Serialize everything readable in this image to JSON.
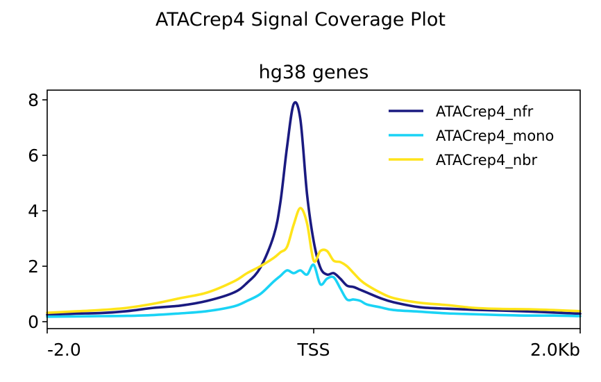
{
  "figure": {
    "suptitle": "ATACrep4 Signal Coverage Plot"
  },
  "chart_data": {
    "type": "line",
    "title": "hg38 genes",
    "xlabel": "",
    "ylabel": "",
    "x_tick_labels": [
      "-2.0",
      "TSS",
      "2.0Kb"
    ],
    "x_tick_positions": [
      -2.0,
      0.0,
      2.0
    ],
    "xlim": [
      -2.0,
      2.0
    ],
    "x_units": "kb from TSS",
    "ylim": [
      -0.25,
      8.35
    ],
    "y_ticks": [
      0,
      2,
      4,
      6,
      8
    ],
    "grid": false,
    "legend_position": "top-right",
    "x": [
      -2.0,
      -1.8,
      -1.6,
      -1.4,
      -1.2,
      -1.0,
      -0.8,
      -0.6,
      -0.5,
      -0.4,
      -0.3,
      -0.25,
      -0.2,
      -0.15,
      -0.1,
      -0.05,
      0.0,
      0.05,
      0.1,
      0.15,
      0.2,
      0.25,
      0.3,
      0.35,
      0.4,
      0.5,
      0.6,
      0.8,
      1.0,
      1.2,
      1.4,
      1.6,
      1.8,
      2.0
    ],
    "series": [
      {
        "name": "ATACrep4_nfr",
        "color": "#1a1a80",
        "values": [
          0.25,
          0.29,
          0.31,
          0.38,
          0.5,
          0.58,
          0.75,
          1.05,
          1.4,
          1.95,
          3.1,
          4.3,
          6.3,
          7.85,
          7.3,
          4.6,
          2.9,
          1.95,
          1.7,
          1.75,
          1.55,
          1.3,
          1.25,
          1.15,
          1.05,
          0.85,
          0.7,
          0.52,
          0.47,
          0.43,
          0.4,
          0.37,
          0.33,
          0.29
        ]
      },
      {
        "name": "ATACrep4_mono",
        "color": "#1ad3f5",
        "values": [
          0.18,
          0.19,
          0.2,
          0.21,
          0.24,
          0.3,
          0.38,
          0.55,
          0.75,
          1.0,
          1.45,
          1.65,
          1.85,
          1.75,
          1.85,
          1.7,
          2.05,
          1.35,
          1.55,
          1.6,
          1.2,
          0.8,
          0.8,
          0.75,
          0.62,
          0.52,
          0.42,
          0.36,
          0.3,
          0.27,
          0.24,
          0.22,
          0.22,
          0.2
        ]
      },
      {
        "name": "ATACrep4_nbr",
        "color": "#ffe41a",
        "values": [
          0.32,
          0.37,
          0.42,
          0.5,
          0.65,
          0.85,
          1.05,
          1.45,
          1.75,
          2.0,
          2.3,
          2.5,
          2.7,
          3.5,
          4.1,
          3.55,
          2.2,
          2.55,
          2.55,
          2.2,
          2.15,
          2.0,
          1.75,
          1.5,
          1.32,
          1.05,
          0.85,
          0.68,
          0.6,
          0.5,
          0.46,
          0.45,
          0.42,
          0.38
        ]
      }
    ]
  }
}
